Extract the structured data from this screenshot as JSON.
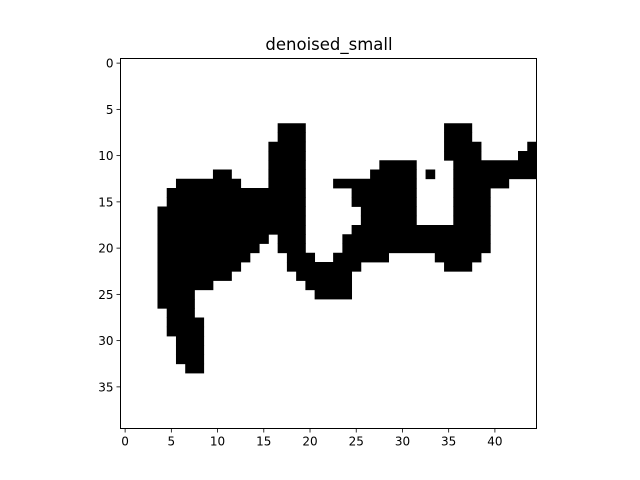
{
  "chart_data": {
    "type": "heatmap",
    "title": "denoised_small",
    "xlabel": "",
    "ylabel": "",
    "width": 45,
    "height": 40,
    "colormap": "gray",
    "colors": {
      "background": "#ffffff",
      "ink": "#000000"
    },
    "x_ticks": [
      0,
      5,
      10,
      15,
      20,
      25,
      30,
      35,
      40
    ],
    "y_ticks": [
      0,
      5,
      10,
      15,
      20,
      25,
      30,
      35
    ],
    "xlim": [
      -0.5,
      44.5
    ],
    "ylim": [
      39.5,
      -0.5
    ],
    "grid": false,
    "ink_rows": [
      {
        "y": 7,
        "x": [
          [
            17,
            19
          ],
          [
            35,
            37
          ]
        ]
      },
      {
        "y": 8,
        "x": [
          [
            17,
            19
          ],
          [
            35,
            37
          ]
        ]
      },
      {
        "y": 9,
        "x": [
          [
            16,
            19
          ],
          [
            35,
            38
          ],
          [
            44,
            44
          ]
        ]
      },
      {
        "y": 10,
        "x": [
          [
            16,
            19
          ],
          [
            35,
            38
          ],
          [
            43,
            44
          ]
        ]
      },
      {
        "y": 11,
        "x": [
          [
            16,
            19
          ],
          [
            28,
            31
          ],
          [
            36,
            44
          ]
        ]
      },
      {
        "y": 12,
        "x": [
          [
            10,
            11
          ],
          [
            16,
            19
          ],
          [
            27,
            31
          ],
          [
            33,
            33
          ],
          [
            36,
            44
          ]
        ]
      },
      {
        "y": 13,
        "x": [
          [
            6,
            12
          ],
          [
            16,
            19
          ],
          [
            23,
            31
          ],
          [
            36,
            41
          ]
        ]
      },
      {
        "y": 14,
        "x": [
          [
            5,
            19
          ],
          [
            25,
            31
          ],
          [
            36,
            39
          ]
        ]
      },
      {
        "y": 15,
        "x": [
          [
            5,
            19
          ],
          [
            25,
            31
          ],
          [
            36,
            39
          ]
        ]
      },
      {
        "y": 16,
        "x": [
          [
            4,
            19
          ],
          [
            26,
            31
          ],
          [
            36,
            39
          ]
        ]
      },
      {
        "y": 17,
        "x": [
          [
            4,
            19
          ],
          [
            26,
            31
          ],
          [
            36,
            39
          ]
        ]
      },
      {
        "y": 18,
        "x": [
          [
            4,
            19
          ],
          [
            25,
            35
          ],
          [
            36,
            39
          ]
        ]
      },
      {
        "y": 19,
        "x": [
          [
            4,
            15
          ],
          [
            17,
            19
          ],
          [
            24,
            39
          ]
        ]
      },
      {
        "y": 20,
        "x": [
          [
            4,
            14
          ],
          [
            17,
            19
          ],
          [
            24,
            39
          ]
        ]
      },
      {
        "y": 21,
        "x": [
          [
            4,
            13
          ],
          [
            18,
            20
          ],
          [
            23,
            28
          ],
          [
            34,
            38
          ]
        ]
      },
      {
        "y": 22,
        "x": [
          [
            4,
            12
          ],
          [
            18,
            25
          ],
          [
            35,
            37
          ]
        ]
      },
      {
        "y": 23,
        "x": [
          [
            4,
            11
          ],
          [
            19,
            24
          ]
        ]
      },
      {
        "y": 24,
        "x": [
          [
            4,
            9
          ],
          [
            20,
            24
          ]
        ]
      },
      {
        "y": 25,
        "x": [
          [
            4,
            7
          ],
          [
            21,
            24
          ]
        ]
      },
      {
        "y": 26,
        "x": [
          [
            4,
            7
          ]
        ]
      },
      {
        "y": 27,
        "x": [
          [
            5,
            7
          ]
        ]
      },
      {
        "y": 28,
        "x": [
          [
            5,
            8
          ]
        ]
      },
      {
        "y": 29,
        "x": [
          [
            5,
            8
          ]
        ]
      },
      {
        "y": 30,
        "x": [
          [
            6,
            8
          ]
        ]
      },
      {
        "y": 31,
        "x": [
          [
            6,
            8
          ]
        ]
      },
      {
        "y": 32,
        "x": [
          [
            6,
            8
          ]
        ]
      },
      {
        "y": 33,
        "x": [
          [
            7,
            8
          ]
        ]
      }
    ]
  }
}
